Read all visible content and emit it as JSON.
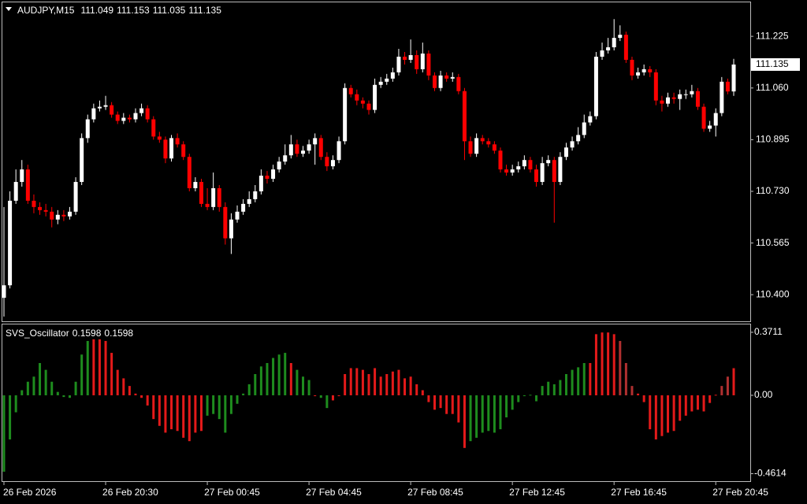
{
  "chart_data": {
    "type": "candlestick",
    "title": "AUDJPY,M15",
    "bull_color": "#ffffff",
    "bear_color": "#ff0000",
    "background": "#000000",
    "categories": [
      "26 Feb 2026",
      null,
      null,
      null,
      null,
      null,
      null,
      null,
      null,
      null,
      null,
      null,
      null,
      null,
      null,
      null,
      null,
      "26 Feb 20:30",
      null,
      null,
      null,
      null,
      null,
      null,
      null,
      null,
      null,
      null,
      null,
      null,
      null,
      null,
      null,
      null,
      "27 Feb 00:45",
      null,
      null,
      null,
      null,
      null,
      null,
      null,
      null,
      null,
      null,
      null,
      null,
      null,
      null,
      null,
      null,
      "27 Feb 04:45",
      null,
      null,
      null,
      null,
      null,
      null,
      null,
      null,
      null,
      null,
      null,
      null,
      null,
      null,
      null,
      null,
      "27 Feb 08:45",
      null,
      null,
      null,
      null,
      null,
      null,
      null,
      null,
      null,
      null,
      null,
      null,
      null,
      null,
      null,
      null,
      "27 Feb 12:45",
      null,
      null,
      null,
      null,
      null,
      null,
      null,
      null,
      null,
      null,
      null,
      null,
      null,
      null,
      null,
      null,
      "27 Feb 16:45",
      null,
      null,
      null,
      null,
      null,
      null,
      null,
      null,
      null,
      null,
      null,
      null,
      null,
      null,
      null,
      null,
      "27 Feb 20:45",
      null,
      null,
      null
    ],
    "open": [
      110.39,
      110.43,
      110.7,
      110.76,
      110.8,
      110.7,
      110.68,
      110.67,
      110.665,
      110.64,
      110.655,
      110.65,
      110.665,
      110.76,
      110.9,
      110.96,
      110.995,
      111.0,
      111.005,
      110.975,
      110.955,
      110.965,
      110.96,
      110.98,
      110.995,
      110.96,
      110.905,
      110.895,
      110.835,
      110.9,
      110.88,
      110.84,
      110.74,
      110.76,
      110.69,
      110.68,
      110.74,
      110.68,
      110.58,
      110.64,
      110.665,
      110.69,
      110.705,
      110.73,
      110.78,
      110.77,
      110.8,
      110.825,
      110.845,
      110.88,
      110.85,
      110.86,
      110.88,
      110.9,
      110.84,
      110.81,
      110.83,
      110.89,
      111.06,
      111.04,
      111.02,
      111.01,
      110.99,
      111.07,
      111.08,
      111.09,
      111.11,
      111.16,
      111.15,
      111.165,
      111.12,
      111.17,
      111.1,
      111.06,
      111.1,
      111.09,
      111.095,
      111.05,
      110.89,
      110.85,
      110.9,
      110.89,
      110.88,
      110.86,
      110.8,
      110.79,
      110.8,
      110.81,
      110.83,
      110.8,
      110.76,
      110.82,
      110.83,
      110.76,
      110.84,
      110.87,
      110.89,
      110.91,
      110.95,
      110.97,
      111.16,
      111.18,
      111.19,
      111.22,
      111.23,
      111.15,
      111.1,
      111.11,
      111.12,
      111.11,
      111.02,
      111.01,
      111.03,
      111.025,
      111.04,
      111.04,
      111.05,
      111.0,
      110.93,
      110.94,
      110.98,
      111.08,
      111.049
    ],
    "high": [
      110.68,
      110.73,
      110.8,
      110.83,
      110.815,
      110.72,
      110.695,
      110.69,
      110.68,
      110.67,
      110.67,
      110.68,
      110.775,
      110.915,
      110.975,
      111.01,
      111.02,
      111.035,
      111.015,
      110.985,
      110.98,
      110.975,
      110.995,
      111.01,
      111.005,
      110.97,
      110.92,
      110.905,
      110.91,
      110.915,
      110.89,
      110.85,
      110.775,
      110.77,
      110.74,
      110.79,
      110.75,
      110.695,
      110.66,
      110.685,
      110.705,
      110.73,
      110.75,
      110.8,
      110.795,
      110.815,
      110.84,
      110.88,
      110.91,
      110.895,
      110.875,
      110.895,
      110.915,
      110.91,
      110.855,
      110.845,
      110.905,
      111.075,
      111.07,
      111.055,
      111.03,
      111.02,
      111.09,
      111.095,
      111.105,
      111.125,
      111.185,
      111.175,
      111.215,
      111.18,
      111.205,
      111.18,
      111.11,
      111.115,
      111.11,
      111.11,
      111.105,
      111.06,
      110.905,
      110.915,
      110.91,
      110.9,
      110.89,
      110.87,
      110.815,
      110.815,
      110.825,
      110.845,
      110.84,
      110.815,
      110.84,
      110.845,
      110.84,
      110.855,
      110.885,
      110.905,
      110.935,
      110.975,
      110.985,
      111.175,
      111.205,
      111.22,
      111.28,
      111.26,
      111.24,
      111.16,
      111.125,
      111.135,
      111.13,
      111.12,
      111.035,
      111.045,
      111.045,
      111.055,
      111.055,
      111.07,
      111.06,
      111.01,
      110.955,
      110.995,
      111.095,
      111.09,
      111.153
    ],
    "low": [
      110.33,
      110.42,
      110.69,
      110.745,
      110.69,
      110.66,
      110.655,
      110.65,
      110.615,
      110.625,
      110.635,
      110.64,
      110.655,
      110.75,
      110.885,
      110.95,
      110.985,
      110.99,
      110.965,
      110.945,
      110.945,
      110.95,
      110.95,
      110.97,
      110.95,
      110.895,
      110.885,
      110.82,
      110.825,
      110.87,
      110.83,
      110.73,
      110.73,
      110.68,
      110.67,
      110.67,
      110.665,
      110.56,
      110.53,
      110.63,
      110.655,
      110.68,
      110.695,
      110.72,
      110.755,
      110.76,
      110.79,
      110.815,
      110.835,
      110.84,
      110.84,
      110.85,
      110.815,
      110.83,
      110.795,
      110.8,
      110.82,
      110.88,
      111.03,
      111.005,
      110.995,
      110.975,
      110.98,
      111.06,
      111.07,
      111.08,
      111.1,
      111.135,
      111.14,
      111.105,
      111.11,
      111.085,
      111.05,
      111.05,
      111.08,
      111.08,
      111.04,
      110.83,
      110.84,
      110.84,
      110.88,
      110.87,
      110.85,
      110.79,
      110.78,
      110.78,
      110.79,
      110.8,
      110.79,
      110.745,
      110.75,
      110.81,
      110.63,
      110.75,
      110.83,
      110.86,
      110.88,
      110.9,
      110.94,
      110.96,
      111.15,
      111.17,
      111.18,
      111.21,
      111.14,
      111.085,
      111.09,
      111.1,
      111.095,
      111.005,
      110.985,
      111.0,
      111.01,
      110.99,
      111.025,
      111.03,
      110.99,
      110.92,
      110.92,
      110.905,
      110.97,
      111.04,
      111.035
    ],
    "close": [
      110.43,
      110.7,
      110.76,
      110.8,
      110.7,
      110.68,
      110.67,
      110.665,
      110.64,
      110.655,
      110.65,
      110.665,
      110.76,
      110.9,
      110.96,
      110.995,
      111.0,
      111.005,
      110.975,
      110.955,
      110.965,
      110.96,
      110.98,
      110.995,
      110.96,
      110.905,
      110.895,
      110.835,
      110.9,
      110.88,
      110.84,
      110.74,
      110.76,
      110.69,
      110.68,
      110.74,
      110.68,
      110.58,
      110.64,
      110.665,
      110.69,
      110.705,
      110.73,
      110.78,
      110.77,
      110.8,
      110.825,
      110.845,
      110.88,
      110.85,
      110.86,
      110.88,
      110.9,
      110.84,
      110.81,
      110.83,
      110.89,
      111.06,
      111.04,
      111.02,
      111.01,
      110.99,
      111.07,
      111.08,
      111.09,
      111.11,
      111.16,
      111.15,
      111.165,
      111.12,
      111.17,
      111.1,
      111.06,
      111.1,
      111.09,
      111.095,
      111.05,
      110.89,
      110.85,
      110.9,
      110.89,
      110.88,
      110.86,
      110.8,
      110.79,
      110.8,
      110.81,
      110.83,
      110.8,
      110.76,
      110.82,
      110.83,
      110.76,
      110.84,
      110.87,
      110.89,
      110.91,
      110.95,
      110.97,
      111.16,
      111.18,
      111.19,
      111.22,
      111.23,
      111.15,
      111.1,
      111.11,
      111.12,
      111.11,
      111.02,
      111.01,
      111.03,
      111.025,
      111.04,
      111.04,
      111.05,
      111.0,
      110.93,
      110.94,
      110.98,
      111.08,
      111.049,
      111.135
    ],
    "ylim": [
      110.315,
      111.336
    ],
    "yticks": [
      {
        "value": 110.4,
        "label": "110.400"
      },
      {
        "value": 110.565,
        "label": "110.565"
      },
      {
        "value": 110.73,
        "label": "110.730"
      },
      {
        "value": 110.895,
        "label": "110.895"
      },
      {
        "value": 111.06,
        "label": "111.060"
      },
      {
        "value": 111.225,
        "label": "111.225"
      }
    ],
    "oscillator": {
      "type": "histogram",
      "name": "SVS_Oscillator",
      "values": [
        -0.45,
        -0.26,
        -0.1,
        0.03,
        0.08,
        0.11,
        0.19,
        0.15,
        0.08,
        0.02,
        -0.01,
        -0.015,
        0.08,
        0.24,
        0.32,
        0.33,
        0.33,
        0.32,
        0.25,
        0.15,
        0.1,
        0.055,
        0.01,
        -0.015,
        -0.06,
        -0.14,
        -0.18,
        -0.22,
        -0.2,
        -0.21,
        -0.25,
        -0.27,
        -0.22,
        -0.21,
        -0.12,
        -0.11,
        -0.14,
        -0.22,
        -0.11,
        -0.05,
        0.01,
        0.065,
        0.125,
        0.17,
        0.19,
        0.22,
        0.24,
        0.25,
        0.19,
        0.15,
        0.11,
        0.09,
        -0.005,
        -0.015,
        -0.075,
        -0.03,
        -0.005,
        0.125,
        0.16,
        0.16,
        0.15,
        0.125,
        0.16,
        0.11,
        0.125,
        0.14,
        0.15,
        0.1,
        0.11,
        0.065,
        0.03,
        -0.04,
        -0.085,
        -0.075,
        -0.11,
        -0.11,
        -0.16,
        -0.31,
        -0.27,
        -0.25,
        -0.22,
        -0.21,
        -0.22,
        -0.2,
        -0.13,
        -0.085,
        -0.04,
        -0.005,
        0.003,
        -0.035,
        0.055,
        0.08,
        0.065,
        0.09,
        0.125,
        0.15,
        0.165,
        0.19,
        0.19,
        0.36,
        0.37,
        0.37,
        0.36,
        0.32,
        0.19,
        0.055,
        0.01,
        -0.04,
        -0.2,
        -0.26,
        -0.24,
        -0.22,
        -0.21,
        -0.15,
        -0.12,
        -0.095,
        -0.085,
        -0.095,
        -0.045,
        0.003,
        0.055,
        0.11,
        0.1598
      ],
      "colors": [
        "#1e8c1e",
        "#1e8c1e",
        "#1e8c1e",
        "#1e8c1e",
        "#1e8c1e",
        "#1e8c1e",
        "#1e8c1e",
        "#1e8c1e",
        "#1e8c1e",
        "#1e8c1e",
        "#1e8c1e",
        "#1e8c1e",
        "#1e8c1e",
        "#1e8c1e",
        "#1e8c1e",
        "#e41a1a",
        "#e41a1a",
        "#e41a1a",
        "#e41a1a",
        "#e41a1a",
        "#e41a1a",
        "#e41a1a",
        "#e41a1a",
        "#e41a1a",
        "#e41a1a",
        "#e41a1a",
        "#e41a1a",
        "#e41a1a",
        "#e41a1a",
        "#e41a1a",
        "#e41a1a",
        "#e41a1a",
        "#e41a1a",
        "#e41a1a",
        "#1e8c1e",
        "#1e8c1e",
        "#1e8c1e",
        "#1e8c1e",
        "#1e8c1e",
        "#1e8c1e",
        "#1e8c1e",
        "#1e8c1e",
        "#1e8c1e",
        "#1e8c1e",
        "#1e8c1e",
        "#1e8c1e",
        "#1e8c1e",
        "#1e8c1e",
        "#e41a1a",
        "#1e8c1e",
        "#1e8c1e",
        "#1e8c1e",
        "#e41a1a",
        "#1e8c1e",
        "#1e8c1e",
        "#e41a1a",
        "#e41a1a",
        "#e41a1a",
        "#e41a1a",
        "#e41a1a",
        "#e41a1a",
        "#e41a1a",
        "#e41a1a",
        "#e41a1a",
        "#e41a1a",
        "#e41a1a",
        "#e41a1a",
        "#e41a1a",
        "#e41a1a",
        "#e41a1a",
        "#e41a1a",
        "#e41a1a",
        "#e41a1a",
        "#e41a1a",
        "#e41a1a",
        "#e41a1a",
        "#e41a1a",
        "#e41a1a",
        "#1e8c1e",
        "#1e8c1e",
        "#1e8c1e",
        "#1e8c1e",
        "#1e8c1e",
        "#1e8c1e",
        "#1e8c1e",
        "#1e8c1e",
        "#1e8c1e",
        "#1e8c1e",
        "#1e8c1e",
        "#1e8c1e",
        "#1e8c1e",
        "#1e8c1e",
        "#1e8c1e",
        "#1e8c1e",
        "#1e8c1e",
        "#1e8c1e",
        "#1e8c1e",
        "#1e8c1e",
        "#e41a1a",
        "#e41a1a",
        "#e41a1a",
        "#e41a1a",
        "#e41a1a",
        "#b03030",
        "#b03030",
        "#b03030",
        "#e41a1a",
        "#e41a1a",
        "#e41a1a",
        "#e41a1a",
        "#e41a1a",
        "#e41a1a",
        "#e41a1a",
        "#e41a1a",
        "#e41a1a",
        "#e41a1a",
        "#e41a1a",
        "#e41a1a",
        "#e41a1a",
        "#e41a1a",
        "#b03030",
        "#b03030",
        "#e41a1a"
      ],
      "ylim": [
        -0.501,
        0.408
      ],
      "yticks": [
        0.3711,
        {
          "value": 0,
          "label": "0.00"
        },
        -0.4614
      ]
    }
  }
}
